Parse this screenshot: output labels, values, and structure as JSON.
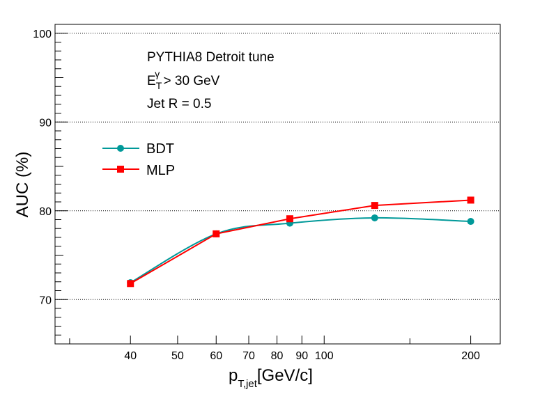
{
  "chart_data": {
    "type": "line",
    "title": "",
    "xlabel": "p_T,jet[GeV/c]",
    "xlabel_main": "p",
    "xlabel_sub": "T,jet",
    "xlabel_unit": "[GeV/c]",
    "ylabel": "AUC (%)",
    "xscale": "log",
    "xlim": [
      28,
      230
    ],
    "ylim": [
      65,
      101
    ],
    "grid": "y",
    "x_ticks": [
      {
        "value": 40,
        "label": "40"
      },
      {
        "value": 50,
        "label": "50"
      },
      {
        "value": 60,
        "label": "60"
      },
      {
        "value": 70,
        "label": "70"
      },
      {
        "value": 80,
        "label": "80"
      },
      {
        "value": 90,
        "label": "90"
      },
      {
        "value": 100,
        "label": "100"
      },
      {
        "value": 200,
        "label": "200"
      }
    ],
    "y_ticks": [
      {
        "value": 70,
        "label": "70"
      },
      {
        "value": 80,
        "label": "80"
      },
      {
        "value": 90,
        "label": "90"
      },
      {
        "value": 100,
        "label": "100"
      }
    ],
    "x": [
      40,
      60,
      85,
      127,
      200
    ],
    "series": [
      {
        "name": "BDT",
        "color": "#009999",
        "marker": "circle",
        "values": [
          71.9,
          77.4,
          78.6,
          79.2,
          78.8
        ]
      },
      {
        "name": "MLP",
        "color": "#ff0000",
        "marker": "square",
        "values": [
          71.8,
          77.4,
          79.1,
          80.6,
          81.2
        ]
      }
    ],
    "annotations": {
      "generator": "PYTHIA8 Detroit tune",
      "et_E": "E",
      "et_sup": "γ",
      "et_sub": "T",
      "et_rest": " > 30 GeV",
      "jet_r": "Jet R = 0.5"
    },
    "legend_position": "upper-left"
  }
}
